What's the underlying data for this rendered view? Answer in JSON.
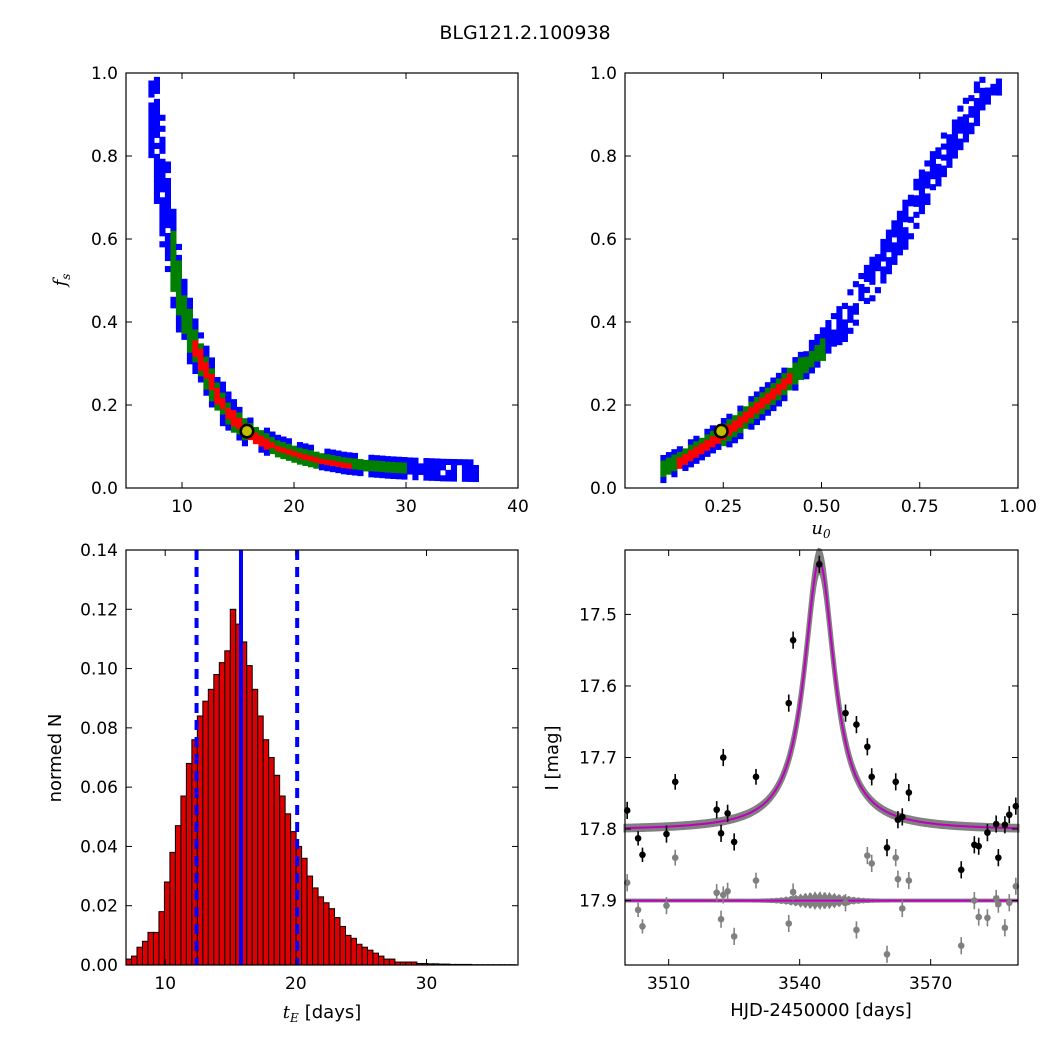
{
  "figure": {
    "title": "BLG121.2.100938"
  },
  "colors": {
    "blue": "#0000ff",
    "green": "#007f00",
    "red": "#ff0000",
    "hist_fill": "#dd0000",
    "magenta": "#bf00bf",
    "gray": "#808080",
    "marker_fill": "#bfbf00"
  },
  "chart_data": [
    {
      "panel": "top-left",
      "type": "heatmap",
      "xlabel": "",
      "ylabel": "f_s",
      "xlim": [
        5,
        40
      ],
      "ylim": [
        0.0,
        1.0
      ],
      "xticks": [
        10,
        20,
        30,
        40
      ],
      "xtick_labels": [
        "10",
        "20",
        "30",
        "40"
      ],
      "yticks": [
        0.0,
        0.2,
        0.4,
        0.6,
        0.8,
        1.0
      ],
      "ytick_labels": [
        "0.0",
        "0.2",
        "0.4",
        "0.6",
        "0.8",
        "1.0"
      ],
      "curve": {
        "description_axes": "f_s vs t_E",
        "points": [
          [
            7.0,
            1.0
          ],
          [
            7.5,
            0.86
          ],
          [
            8.0,
            0.74
          ],
          [
            8.5,
            0.64
          ],
          [
            9.0,
            0.55
          ],
          [
            9.5,
            0.48
          ],
          [
            10.0,
            0.42
          ],
          [
            11.0,
            0.34
          ],
          [
            12.0,
            0.28
          ],
          [
            13.0,
            0.225
          ],
          [
            14.0,
            0.185
          ],
          [
            15.0,
            0.155
          ],
          [
            16.0,
            0.135
          ],
          [
            17.0,
            0.12
          ],
          [
            18.0,
            0.105
          ],
          [
            20.0,
            0.088
          ],
          [
            22.0,
            0.075
          ],
          [
            24.0,
            0.066
          ],
          [
            26.0,
            0.06
          ],
          [
            28.0,
            0.056
          ],
          [
            30.0,
            0.053
          ],
          [
            33.0,
            0.05
          ],
          [
            36.5,
            0.048
          ]
        ]
      },
      "red_range_x": [
        10.5,
        25.0
      ],
      "green_range_x": [
        8.5,
        30.0
      ],
      "blue_range_x": [
        7.0,
        36.5
      ],
      "best_fit": {
        "x": 15.8,
        "y": 0.137
      }
    },
    {
      "panel": "top-right",
      "type": "heatmap",
      "xlabel": "u_0",
      "ylabel": "",
      "xlim": [
        0.0,
        1.0
      ],
      "ylim": [
        0.0,
        1.0
      ],
      "xticks": [
        0.25,
        0.5,
        0.75,
        1.0
      ],
      "xtick_labels": [
        "0.25",
        "0.50",
        "0.75",
        "1.00"
      ],
      "yticks": [
        0.0,
        0.2,
        0.4,
        0.6,
        0.8,
        1.0
      ],
      "ytick_labels": [
        "0.0",
        "0.2",
        "0.4",
        "0.6",
        "0.8",
        "1.0"
      ],
      "curve": {
        "description_axes": "f_s vs u_0",
        "points": [
          [
            0.09,
            0.05
          ],
          [
            0.15,
            0.08
          ],
          [
            0.2,
            0.11
          ],
          [
            0.25,
            0.14
          ],
          [
            0.3,
            0.175
          ],
          [
            0.35,
            0.215
          ],
          [
            0.4,
            0.255
          ],
          [
            0.45,
            0.3
          ],
          [
            0.5,
            0.35
          ],
          [
            0.55,
            0.41
          ],
          [
            0.6,
            0.48
          ],
          [
            0.65,
            0.55
          ],
          [
            0.7,
            0.63
          ],
          [
            0.75,
            0.72
          ],
          [
            0.8,
            0.8
          ],
          [
            0.85,
            0.88
          ],
          [
            0.9,
            0.95
          ],
          [
            0.93,
            0.98
          ]
        ]
      },
      "red_range_x": [
        0.12,
        0.42
      ],
      "green_range_x": [
        0.09,
        0.5
      ],
      "blue_range_x": [
        0.09,
        0.95
      ],
      "best_fit": {
        "x": 0.245,
        "y": 0.137
      }
    },
    {
      "panel": "bottom-left",
      "type": "bar",
      "xlabel": "t_E [days]",
      "xlabel_unit": "[days]",
      "ylabel": "normed N",
      "xlim": [
        7.0,
        37.0
      ],
      "ylim": [
        0.0,
        0.14
      ],
      "xticks": [
        10,
        20,
        30
      ],
      "xtick_labels": [
        "10",
        "20",
        "30"
      ],
      "yticks": [
        0.0,
        0.02,
        0.04,
        0.06,
        0.08,
        0.1,
        0.12,
        0.14
      ],
      "ytick_labels": [
        "0.00",
        "0.02",
        "0.04",
        "0.06",
        "0.08",
        "0.10",
        "0.12",
        "0.14"
      ],
      "bin_start": 7.0,
      "bin_width": 0.42,
      "values": [
        0.002,
        0.003,
        0.006,
        0.008,
        0.011,
        0.011,
        0.018,
        0.028,
        0.038,
        0.047,
        0.057,
        0.068,
        0.076,
        0.084,
        0.089,
        0.093,
        0.098,
        0.102,
        0.106,
        0.12,
        0.115,
        0.109,
        0.101,
        0.093,
        0.084,
        0.076,
        0.07,
        0.064,
        0.057,
        0.051,
        0.045,
        0.04,
        0.036,
        0.03,
        0.026,
        0.023,
        0.021,
        0.019,
        0.016,
        0.013,
        0.01,
        0.009,
        0.007,
        0.006,
        0.005,
        0.004,
        0.003,
        0.002,
        0.002,
        0.001,
        0.001,
        0.001,
        0.001,
        0.0005,
        0.0005,
        0.0004,
        0.0004,
        0.0003,
        0.0003,
        0.0002,
        0.0002,
        0.0002,
        0.0002,
        0.0001,
        0.0001,
        0.0001,
        0.0001,
        0.0001,
        0.0001,
        0.0001,
        0.0001
      ],
      "median": 15.8,
      "lower": 12.4,
      "upper": 20.1
    },
    {
      "panel": "bottom-right",
      "type": "scatter",
      "xlabel": "HJD-2450000 [days]",
      "ylabel": "I [mag]",
      "xlim": [
        3500.0,
        3590.0
      ],
      "ylim": [
        17.99,
        17.41
      ],
      "xticks": [
        3510,
        3540,
        3570
      ],
      "xtick_labels": [
        "3510",
        "3540",
        "3570"
      ],
      "yticks": [
        17.5,
        17.6,
        17.7,
        17.8,
        17.9
      ],
      "ytick_labels": [
        "17.5",
        "17.6",
        "17.7",
        "17.8",
        "17.9"
      ],
      "model": {
        "t0": 3544.5,
        "baseline": 17.802,
        "peak": 17.425,
        "width": 4.2
      },
      "data_points": [
        [
          3500.5,
          17.774,
          0.012
        ],
        [
          3503.0,
          17.813,
          0.01
        ],
        [
          3504.0,
          17.836,
          0.01
        ],
        [
          3509.5,
          17.807,
          0.012
        ],
        [
          3511.5,
          17.734,
          0.011
        ],
        [
          3521.0,
          17.773,
          0.012
        ],
        [
          3522.0,
          17.806,
          0.012
        ],
        [
          3522.5,
          17.7,
          0.012
        ],
        [
          3523.5,
          17.778,
          0.012
        ],
        [
          3525.0,
          17.818,
          0.012
        ],
        [
          3530.0,
          17.727,
          0.011
        ],
        [
          3537.5,
          17.624,
          0.012
        ],
        [
          3538.5,
          17.536,
          0.012
        ],
        [
          3544.5,
          17.43,
          0.012
        ],
        [
          3550.5,
          17.638,
          0.012
        ],
        [
          3553.0,
          17.654,
          0.012
        ],
        [
          3555.5,
          17.685,
          0.012
        ],
        [
          3556.5,
          17.727,
          0.012
        ],
        [
          3560.0,
          17.826,
          0.012
        ],
        [
          3562.0,
          17.734,
          0.012
        ],
        [
          3562.5,
          17.787,
          0.012
        ],
        [
          3563.5,
          17.783,
          0.012
        ],
        [
          3565.0,
          17.749,
          0.012
        ],
        [
          3577.0,
          17.857,
          0.012
        ],
        [
          3580.0,
          17.822,
          0.012
        ],
        [
          3581.0,
          17.824,
          0.012
        ],
        [
          3583.0,
          17.805,
          0.012
        ],
        [
          3585.0,
          17.793,
          0.012
        ],
        [
          3585.5,
          17.84,
          0.012
        ],
        [
          3587.0,
          17.794,
          0.012
        ],
        [
          3588.0,
          17.78,
          0.012
        ],
        [
          3589.5,
          17.768,
          0.012
        ]
      ],
      "residual_baseline": 17.9,
      "residual_points": [
        [
          3500.5,
          17.875,
          0.012
        ],
        [
          3503.0,
          17.913,
          0.01
        ],
        [
          3504.0,
          17.936,
          0.01
        ],
        [
          3509.5,
          17.907,
          0.012
        ],
        [
          3511.5,
          17.84,
          0.011
        ],
        [
          3521.0,
          17.889,
          0.012
        ],
        [
          3522.0,
          17.926,
          0.012
        ],
        [
          3522.5,
          17.892,
          0.012
        ],
        [
          3523.5,
          17.887,
          0.012
        ],
        [
          3525.0,
          17.95,
          0.012
        ],
        [
          3530.0,
          17.872,
          0.011
        ],
        [
          3537.5,
          17.932,
          0.012
        ],
        [
          3538.5,
          17.888,
          0.012
        ],
        [
          3550.5,
          17.903,
          0.012
        ],
        [
          3553.0,
          17.941,
          0.012
        ],
        [
          3555.5,
          17.837,
          0.012
        ],
        [
          3556.5,
          17.848,
          0.012
        ],
        [
          3560.0,
          17.975,
          0.012
        ],
        [
          3562.0,
          17.84,
          0.012
        ],
        [
          3562.5,
          17.87,
          0.012
        ],
        [
          3563.5,
          17.911,
          0.012
        ],
        [
          3565.0,
          17.872,
          0.012
        ],
        [
          3577.0,
          17.963,
          0.012
        ],
        [
          3580.0,
          17.9,
          0.012
        ],
        [
          3581.0,
          17.923,
          0.012
        ],
        [
          3583.0,
          17.924,
          0.012
        ],
        [
          3585.0,
          17.897,
          0.012
        ],
        [
          3585.5,
          17.905,
          0.012
        ],
        [
          3587.0,
          17.938,
          0.012
        ],
        [
          3588.0,
          17.903,
          0.012
        ],
        [
          3589.5,
          17.88,
          0.012
        ]
      ]
    }
  ]
}
